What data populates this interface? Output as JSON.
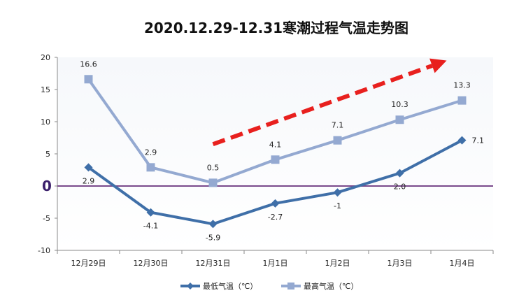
{
  "chart_data": {
    "type": "line",
    "title": "2020.12.29-12.31寒潮过程气温走势图",
    "xlabel": "",
    "ylabel": "",
    "categories": [
      "12月29日",
      "12月30日",
      "12月31日",
      "1月1日",
      "1月2日",
      "1月3日",
      "1月4日"
    ],
    "ylim": [
      -10,
      20
    ],
    "yticks": [
      -10,
      -5,
      0,
      5,
      10,
      15,
      20
    ],
    "zero_line_label": "0",
    "grid": false,
    "legend_position": "bottom",
    "series": [
      {
        "name": "最低气温（℃）",
        "values": [
          2.9,
          -4.1,
          -5.9,
          -2.7,
          -1,
          2.0,
          7.1
        ],
        "labels": [
          "2.9",
          "-4.1",
          "-5.9",
          "-2.7",
          "-1",
          "2.0",
          "7.1"
        ],
        "color": "#3f6fa8",
        "marker": "diamond"
      },
      {
        "name": "最高气温（℃）",
        "values": [
          16.6,
          2.9,
          0.5,
          4.1,
          7.1,
          10.3,
          13.3
        ],
        "labels": [
          "16.6",
          "2.9",
          "0.5",
          "4.1",
          "7.1",
          "10.3",
          "13.3"
        ],
        "color": "#94a9d1",
        "marker": "square"
      }
    ],
    "annotation": {
      "type": "dashed-arrow",
      "color": "#e8201e",
      "from": {
        "category": "12月31日",
        "y": 6.5
      },
      "to": {
        "category": "1月4日",
        "y": 19.5
      }
    },
    "colors": {
      "zero_line": "#7a4a8c",
      "zero_label": "#3b1f6b",
      "plot_top": "#f6f8fb",
      "plot_bottom": "#ffffff"
    }
  }
}
